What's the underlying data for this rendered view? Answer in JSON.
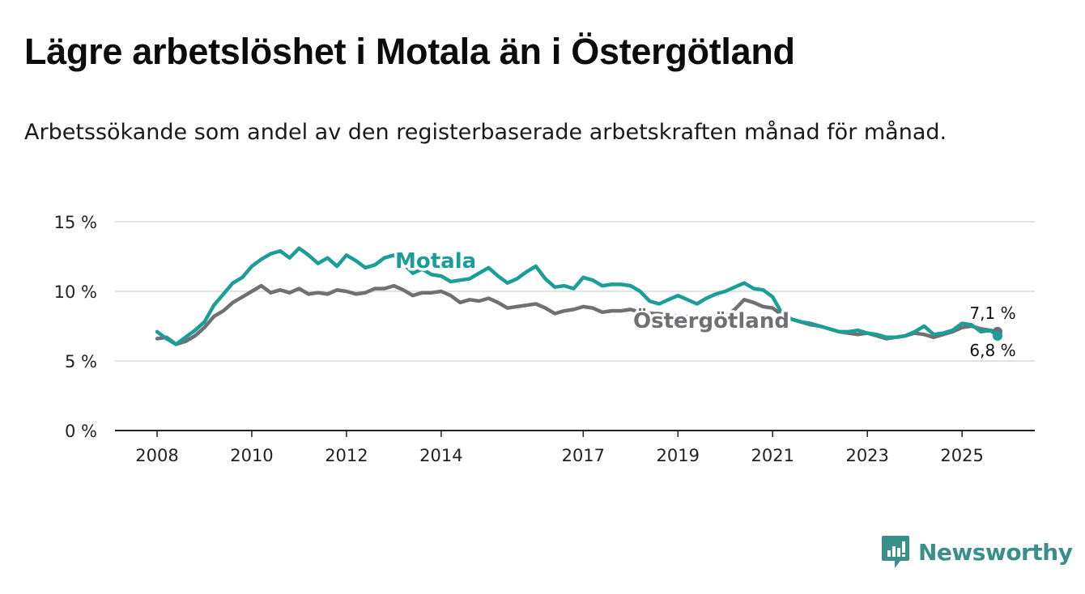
{
  "title": "Lägre arbetslöshet i Motala än i Östergötland",
  "subtitle": "Arbetssökande som andel av den registerbaserade arbetskraften månad för månad.",
  "brand": "Newsworthy",
  "chart_data": {
    "type": "line",
    "title": "Lägre arbetslöshet i Motala än i Östergötland",
    "ylabel": "",
    "xlabel": "",
    "xlim": [
      2008,
      2025.75
    ],
    "ylim": [
      0,
      15
    ],
    "yticks": [
      0,
      5,
      10,
      15
    ],
    "ytick_labels": [
      "0 %",
      "5 %",
      "10 %",
      "15 %"
    ],
    "xticks": [
      2008,
      2010,
      2012,
      2014,
      2017,
      2019,
      2021,
      2023,
      2025
    ],
    "xtick_labels": [
      "2008",
      "2010",
      "2012",
      "2014",
      "2017",
      "2019",
      "2021",
      "2023",
      "2025"
    ],
    "grid": true,
    "series": [
      {
        "name": "Östergötland",
        "color": "#707074",
        "end_label": "7,1 %",
        "x": [
          2008.0,
          2008.2,
          2008.4,
          2008.6,
          2008.8,
          2009.0,
          2009.2,
          2009.4,
          2009.6,
          2009.8,
          2010.0,
          2010.2,
          2010.4,
          2010.6,
          2010.8,
          2011.0,
          2011.2,
          2011.4,
          2011.6,
          2011.8,
          2012.0,
          2012.2,
          2012.4,
          2012.6,
          2012.8,
          2013.0,
          2013.2,
          2013.4,
          2013.6,
          2013.8,
          2014.0,
          2014.2,
          2014.4,
          2014.6,
          2014.8,
          2015.0,
          2015.2,
          2015.4,
          2015.6,
          2015.8,
          2016.0,
          2016.2,
          2016.4,
          2016.6,
          2016.8,
          2017.0,
          2017.2,
          2017.4,
          2017.6,
          2017.8,
          2018.0,
          2018.2,
          2018.4,
          2018.6,
          2018.8,
          2019.0,
          2019.2,
          2019.4,
          2019.6,
          2019.8,
          2020.0,
          2020.2,
          2020.4,
          2020.6,
          2020.8,
          2021.0,
          2021.2,
          2021.4,
          2021.6,
          2021.8,
          2022.0,
          2022.2,
          2022.4,
          2022.6,
          2022.8,
          2023.0,
          2023.2,
          2023.4,
          2023.6,
          2023.8,
          2024.0,
          2024.2,
          2024.4,
          2024.6,
          2024.8,
          2025.0,
          2025.2,
          2025.4,
          2025.6,
          2025.75
        ],
        "values": [
          6.6,
          6.7,
          6.2,
          6.4,
          6.8,
          7.4,
          8.2,
          8.6,
          9.2,
          9.6,
          10.0,
          10.4,
          9.9,
          10.1,
          9.9,
          10.2,
          9.8,
          9.9,
          9.8,
          10.1,
          10.0,
          9.8,
          9.9,
          10.2,
          10.2,
          10.4,
          10.1,
          9.7,
          9.9,
          9.9,
          10.0,
          9.7,
          9.2,
          9.4,
          9.3,
          9.5,
          9.2,
          8.8,
          8.9,
          9.0,
          9.1,
          8.8,
          8.4,
          8.6,
          8.7,
          8.9,
          8.8,
          8.5,
          8.6,
          8.6,
          8.7,
          8.5,
          8.4,
          8.4,
          8.3,
          8.2,
          8.2,
          8.1,
          8.1,
          8.2,
          8.2,
          8.7,
          9.4,
          9.2,
          8.9,
          8.8,
          8.3,
          8.0,
          7.8,
          7.6,
          7.5,
          7.3,
          7.1,
          7.0,
          6.9,
          7.0,
          6.8,
          6.6,
          6.7,
          6.8,
          7.0,
          6.9,
          6.7,
          6.9,
          7.1,
          7.4,
          7.5,
          7.3,
          7.2,
          7.1
        ]
      },
      {
        "name": "Motala",
        "color": "#1a9e96",
        "end_label": "6,8 %",
        "x": [
          2008.0,
          2008.2,
          2008.4,
          2008.6,
          2008.8,
          2009.0,
          2009.2,
          2009.4,
          2009.6,
          2009.8,
          2010.0,
          2010.2,
          2010.4,
          2010.6,
          2010.8,
          2011.0,
          2011.2,
          2011.4,
          2011.6,
          2011.8,
          2012.0,
          2012.2,
          2012.4,
          2012.6,
          2012.8,
          2013.0,
          2013.2,
          2013.4,
          2013.6,
          2013.8,
          2014.0,
          2014.2,
          2014.4,
          2014.6,
          2014.8,
          2015.0,
          2015.2,
          2015.4,
          2015.6,
          2015.8,
          2016.0,
          2016.2,
          2016.4,
          2016.6,
          2016.8,
          2017.0,
          2017.2,
          2017.4,
          2017.6,
          2017.8,
          2018.0,
          2018.2,
          2018.4,
          2018.6,
          2018.8,
          2019.0,
          2019.2,
          2019.4,
          2019.6,
          2019.8,
          2020.0,
          2020.2,
          2020.4,
          2020.6,
          2020.8,
          2021.0,
          2021.2,
          2021.4,
          2021.6,
          2021.8,
          2022.0,
          2022.2,
          2022.4,
          2022.6,
          2022.8,
          2023.0,
          2023.2,
          2023.4,
          2023.6,
          2023.8,
          2024.0,
          2024.2,
          2024.4,
          2024.6,
          2024.8,
          2025.0,
          2025.2,
          2025.4,
          2025.6,
          2025.75
        ],
        "values": [
          7.1,
          6.6,
          6.2,
          6.7,
          7.2,
          7.8,
          9.0,
          9.8,
          10.6,
          11.0,
          11.8,
          12.3,
          12.7,
          12.9,
          12.4,
          13.1,
          12.6,
          12.0,
          12.4,
          11.8,
          12.6,
          12.2,
          11.7,
          11.9,
          12.4,
          12.6,
          12.0,
          11.3,
          11.6,
          11.2,
          11.1,
          10.7,
          10.8,
          10.9,
          11.3,
          11.7,
          11.1,
          10.6,
          10.9,
          11.4,
          11.8,
          10.9,
          10.3,
          10.4,
          10.2,
          11.0,
          10.8,
          10.4,
          10.5,
          10.5,
          10.4,
          10.0,
          9.3,
          9.1,
          9.4,
          9.7,
          9.4,
          9.1,
          9.5,
          9.8,
          10.0,
          10.3,
          10.6,
          10.2,
          10.1,
          9.6,
          8.4,
          8.0,
          7.8,
          7.7,
          7.5,
          7.3,
          7.1,
          7.1,
          7.2,
          7.0,
          6.9,
          6.7,
          6.7,
          6.8,
          7.1,
          7.5,
          6.9,
          7.0,
          7.2,
          7.7,
          7.6,
          7.1,
          7.2,
          6.8
        ]
      }
    ]
  }
}
